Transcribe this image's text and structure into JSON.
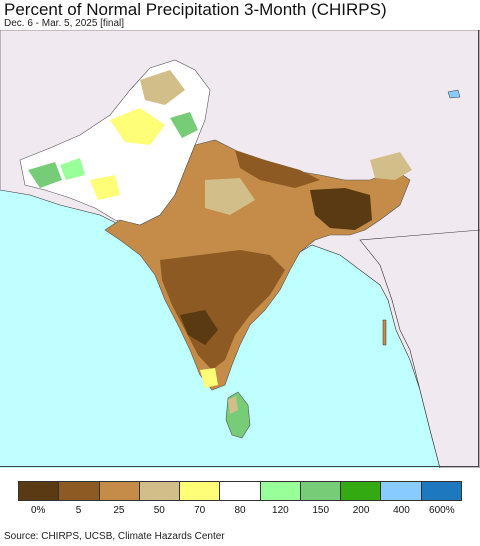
{
  "title": "Percent of Normal Precipitation 3-Month (CHIRPS)",
  "subtitle": "Dec. 6 - Mar. 5, 2025 [final]",
  "legend": {
    "colors": [
      "#5a3a12",
      "#8c5a22",
      "#c48c48",
      "#d2be88",
      "#ffff77",
      "#ffffff",
      "#99ff99",
      "#77cc77",
      "#33aa11",
      "#88ccff",
      "#1e78be"
    ],
    "ticks": [
      "0%",
      "5",
      "25",
      "50",
      "70",
      "80",
      "120",
      "150",
      "200",
      "400",
      "600%"
    ]
  },
  "source": "Source: CHIRPS, UCSB, Climate Hazards Center"
}
